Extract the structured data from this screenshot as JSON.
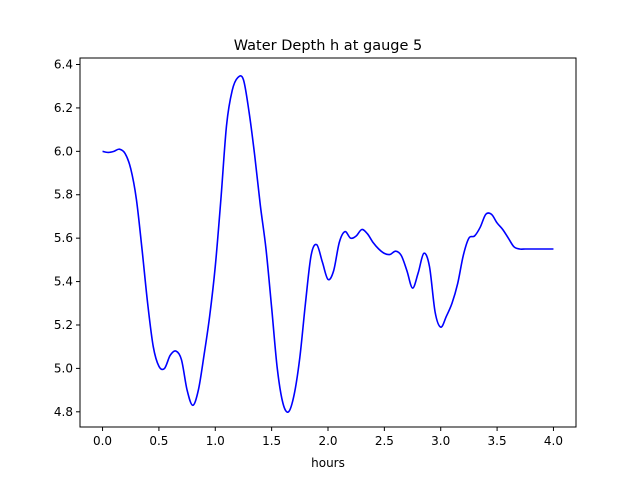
{
  "chart_data": {
    "type": "line",
    "title": "Water Depth h at gauge 5",
    "xlabel": "hours",
    "ylabel": "",
    "xlim": [
      -0.2,
      4.2
    ],
    "ylim": [
      4.73,
      6.43
    ],
    "xticks": [
      0.0,
      0.5,
      1.0,
      1.5,
      2.0,
      2.5,
      3.0,
      3.5,
      4.0
    ],
    "xtick_labels": [
      "0.0",
      "0.5",
      "1.0",
      "1.5",
      "2.0",
      "2.5",
      "3.0",
      "3.5",
      "4.0"
    ],
    "yticks": [
      4.8,
      5.0,
      5.2,
      5.4,
      5.6,
      5.8,
      6.0,
      6.2,
      6.4
    ],
    "ytick_labels": [
      "4.8",
      "5.0",
      "5.2",
      "5.4",
      "5.6",
      "5.8",
      "6.0",
      "6.2",
      "6.4"
    ],
    "grid": false,
    "legend": "none",
    "series": [
      {
        "color": "#0000ff",
        "x": [
          0.0,
          0.05,
          0.1,
          0.15,
          0.2,
          0.25,
          0.3,
          0.35,
          0.4,
          0.45,
          0.5,
          0.55,
          0.6,
          0.65,
          0.7,
          0.75,
          0.8,
          0.85,
          0.9,
          0.95,
          1.0,
          1.05,
          1.1,
          1.15,
          1.2,
          1.25,
          1.3,
          1.35,
          1.4,
          1.45,
          1.5,
          1.55,
          1.6,
          1.65,
          1.7,
          1.75,
          1.8,
          1.85,
          1.9,
          1.95,
          2.0,
          2.05,
          2.1,
          2.15,
          2.2,
          2.25,
          2.3,
          2.35,
          2.4,
          2.45,
          2.5,
          2.55,
          2.6,
          2.65,
          2.7,
          2.75,
          2.8,
          2.85,
          2.9,
          2.95,
          3.0,
          3.05,
          3.1,
          3.15,
          3.2,
          3.25,
          3.3,
          3.35,
          3.4,
          3.45,
          3.5,
          3.55,
          3.6,
          3.65,
          3.7,
          3.75,
          3.8,
          3.85,
          3.9,
          3.95,
          4.0
        ],
        "y": [
          6.0,
          5.995,
          6.0,
          6.01,
          5.99,
          5.92,
          5.78,
          5.55,
          5.3,
          5.1,
          5.01,
          5.0,
          5.06,
          5.08,
          5.04,
          4.9,
          4.83,
          4.9,
          5.06,
          5.24,
          5.47,
          5.78,
          6.12,
          6.28,
          6.34,
          6.33,
          6.18,
          5.98,
          5.75,
          5.55,
          5.28,
          5.0,
          4.84,
          4.8,
          4.88,
          5.05,
          5.3,
          5.52,
          5.57,
          5.49,
          5.41,
          5.45,
          5.58,
          5.63,
          5.6,
          5.61,
          5.64,
          5.62,
          5.58,
          5.55,
          5.53,
          5.525,
          5.54,
          5.52,
          5.45,
          5.37,
          5.44,
          5.53,
          5.47,
          5.26,
          5.19,
          5.24,
          5.3,
          5.39,
          5.52,
          5.6,
          5.61,
          5.65,
          5.71,
          5.71,
          5.67,
          5.64,
          5.6,
          5.56,
          5.55,
          5.55,
          5.55,
          5.55,
          5.55,
          5.55,
          5.55
        ]
      }
    ]
  }
}
